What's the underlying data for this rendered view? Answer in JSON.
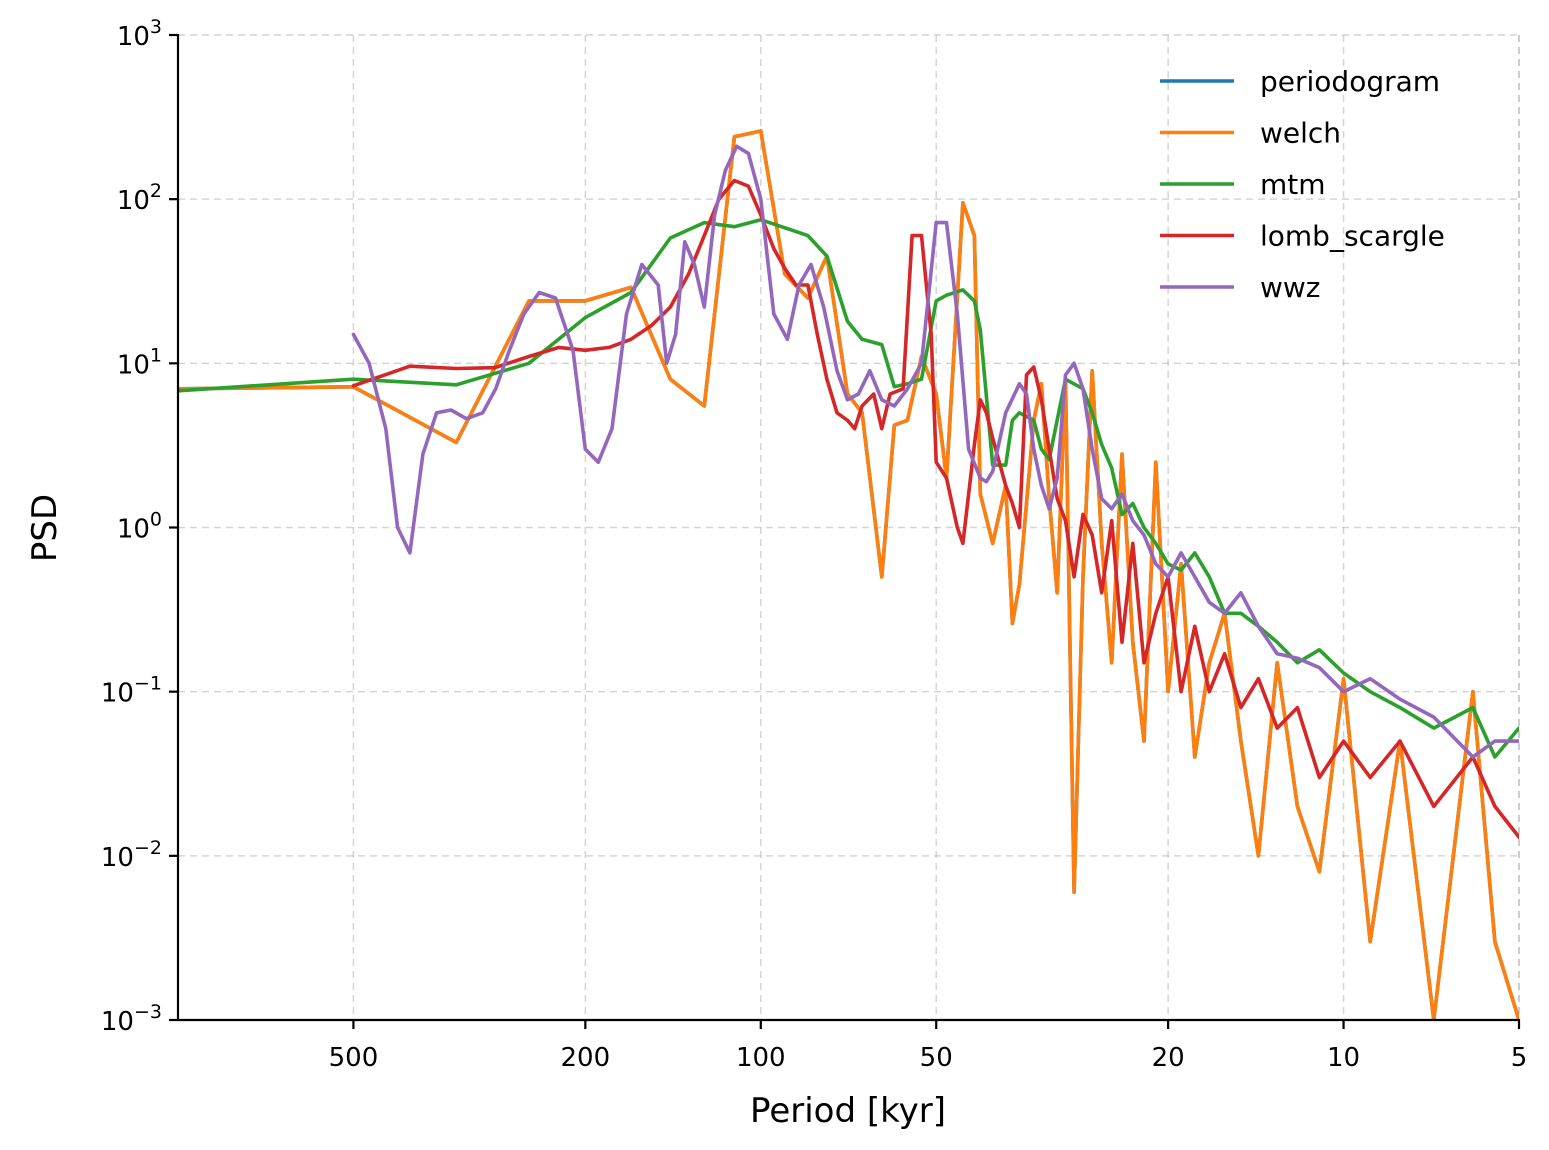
{
  "chart_data": {
    "type": "line",
    "title": "",
    "xlabel": "Period [kyr]",
    "ylabel": "PSD",
    "x_scale": "log",
    "y_scale": "log",
    "x_inverted": true,
    "xlim": [
      1000,
      5
    ],
    "ylim": [
      0.001,
      1000
    ],
    "x_ticks": [
      {
        "value": 500,
        "label": "500"
      },
      {
        "value": 200,
        "label": "200"
      },
      {
        "value": 100,
        "label": "100"
      },
      {
        "value": 50,
        "label": "50"
      },
      {
        "value": 20,
        "label": "20"
      },
      {
        "value": 10,
        "label": "10"
      },
      {
        "value": 5,
        "label": "5"
      }
    ],
    "y_ticks": [
      {
        "value": 0.001,
        "base": "10",
        "exp": "−3"
      },
      {
        "value": 0.01,
        "base": "10",
        "exp": "−2"
      },
      {
        "value": 0.1,
        "base": "10",
        "exp": "−1"
      },
      {
        "value": 1,
        "base": "10",
        "exp": "0"
      },
      {
        "value": 10,
        "base": "10",
        "exp": "1"
      },
      {
        "value": 100,
        "base": "10",
        "exp": "2"
      },
      {
        "value": 1000,
        "base": "10",
        "exp": "3"
      }
    ],
    "grid": true,
    "legend_position": "top-right",
    "series": [
      {
        "name": "periodogram",
        "color": "#1f77b4",
        "x": [
          1000,
          500,
          333,
          250,
          200,
          167,
          143,
          125,
          111,
          100,
          91,
          83,
          77,
          71,
          67,
          62,
          59,
          56,
          53,
          50,
          48,
          45,
          43,
          42,
          40,
          38,
          37,
          36,
          34,
          33,
          32,
          31,
          30,
          29,
          28,
          27,
          26,
          25,
          24,
          23,
          22,
          21,
          20,
          19,
          18,
          17,
          16,
          15,
          14,
          13,
          12,
          11,
          10,
          9,
          8,
          7,
          6,
          5.5,
          5
        ],
        "y": [
          7,
          7.2,
          3.3,
          24,
          24,
          29,
          8,
          5.5,
          240,
          260,
          35,
          25,
          45,
          6.5,
          5,
          0.5,
          4.2,
          4.5,
          11,
          6.5,
          2,
          95,
          60,
          1.6,
          0.8,
          1.8,
          0.26,
          0.45,
          4.5,
          7.5,
          1.5,
          0.4,
          8,
          0.006,
          0.5,
          9,
          0.8,
          0.15,
          2.8,
          0.2,
          0.05,
          2.5,
          0.1,
          0.6,
          0.04,
          0.15,
          0.3,
          0.05,
          0.01,
          0.15,
          0.02,
          0.008,
          0.12,
          0.003,
          0.05,
          0.001,
          0.1,
          0.003,
          0.001
        ]
      },
      {
        "name": "welch",
        "color": "#ff7f0e",
        "x": [
          1000,
          500,
          333,
          250,
          200,
          167,
          143,
          125,
          111,
          100,
          91,
          83,
          77,
          71,
          67,
          62,
          59,
          56,
          53,
          50,
          48,
          45,
          43,
          42,
          40,
          38,
          37,
          36,
          34,
          33,
          32,
          31,
          30,
          29,
          28,
          27,
          26,
          25,
          24,
          23,
          22,
          21,
          20,
          19,
          18,
          17,
          16,
          15,
          14,
          13,
          12,
          11,
          10,
          9,
          8,
          7,
          6,
          5.5,
          5
        ],
        "y": [
          7,
          7.2,
          3.3,
          24,
          24,
          29,
          8,
          5.5,
          240,
          260,
          35,
          25,
          45,
          6.5,
          5,
          0.5,
          4.2,
          4.5,
          11,
          6.5,
          2,
          95,
          60,
          1.6,
          0.8,
          1.8,
          0.26,
          0.45,
          4.5,
          7.5,
          1.5,
          0.4,
          8,
          0.006,
          0.5,
          9,
          0.8,
          0.15,
          2.8,
          0.2,
          0.05,
          2.5,
          0.1,
          0.6,
          0.04,
          0.15,
          0.3,
          0.05,
          0.01,
          0.15,
          0.02,
          0.008,
          0.12,
          0.003,
          0.05,
          0.001,
          0.1,
          0.003,
          0.001
        ]
      },
      {
        "name": "mtm",
        "color": "#2ca02c",
        "x": [
          1000,
          500,
          333,
          250,
          200,
          167,
          143,
          125,
          111,
          100,
          83,
          77,
          71,
          67,
          62,
          59,
          56,
          53,
          50,
          48,
          45,
          43,
          42,
          40,
          38,
          37,
          36,
          34,
          33,
          32,
          30,
          28,
          27,
          26,
          25,
          24,
          23,
          22,
          21,
          20,
          19,
          18,
          17,
          16,
          15,
          14,
          13,
          12,
          11,
          10,
          9,
          8,
          7,
          6,
          5.5,
          5
        ],
        "y": [
          6.8,
          8,
          7.4,
          10,
          19,
          27,
          58,
          72,
          68,
          75,
          60,
          45,
          18,
          14,
          13,
          7.2,
          7.5,
          8,
          24,
          26,
          28,
          24,
          16,
          2.4,
          2.4,
          4.5,
          5,
          4.5,
          3,
          2.6,
          8,
          7,
          5,
          3.2,
          2.3,
          1.2,
          1.4,
          1,
          0.8,
          0.6,
          0.55,
          0.7,
          0.5,
          0.3,
          0.3,
          0.25,
          0.2,
          0.15,
          0.18,
          0.13,
          0.1,
          0.08,
          0.06,
          0.08,
          0.04,
          0.06
        ]
      },
      {
        "name": "lomb_scargle",
        "color": "#d62728",
        "x": [
          500,
          400,
          333,
          286,
          250,
          222,
          200,
          182,
          167,
          154,
          143,
          133,
          125,
          118,
          111,
          105,
          100,
          95,
          91,
          87,
          83,
          80,
          77,
          74,
          71,
          69,
          67,
          64,
          62,
          60,
          57,
          55,
          53,
          51,
          50,
          48,
          46,
          45,
          43,
          42,
          41,
          40,
          38,
          37,
          36,
          35,
          34,
          33,
          32,
          31,
          30,
          29,
          28,
          27,
          26,
          25,
          24,
          23,
          22,
          21,
          20,
          19,
          18,
          17,
          16,
          15,
          14,
          13,
          12,
          11,
          10,
          9,
          8,
          7,
          6,
          5.5,
          5
        ],
        "y": [
          7.3,
          9.6,
          9.3,
          9.4,
          11,
          12.5,
          12,
          12.5,
          14,
          17,
          22,
          35,
          60,
          100,
          130,
          120,
          80,
          50,
          38,
          30,
          30,
          15,
          8,
          5,
          4.5,
          4,
          5.5,
          6.5,
          4,
          6.5,
          7,
          60,
          60,
          15,
          2.5,
          2,
          1,
          0.8,
          3.2,
          6,
          5,
          3.5,
          1.8,
          1.4,
          1,
          8.5,
          9.5,
          6,
          3,
          1.5,
          1.1,
          0.5,
          1.2,
          0.9,
          0.4,
          1.1,
          0.2,
          0.8,
          0.15,
          0.3,
          0.5,
          0.1,
          0.25,
          0.1,
          0.17,
          0.08,
          0.12,
          0.06,
          0.08,
          0.03,
          0.05,
          0.03,
          0.05,
          0.02,
          0.04,
          0.02,
          0.013
        ]
      },
      {
        "name": "wwz",
        "color": "#9467bd",
        "x": [
          500,
          470,
          440,
          420,
          400,
          380,
          360,
          340,
          320,
          300,
          285,
          270,
          255,
          240,
          225,
          210,
          200,
          190,
          180,
          170,
          160,
          150,
          145,
          140,
          135,
          130,
          125,
          120,
          115,
          110,
          105,
          100,
          95,
          90,
          86,
          82,
          78,
          74,
          71,
          68,
          65,
          62,
          59,
          56,
          53,
          50,
          48,
          46,
          44,
          42,
          41,
          40,
          38,
          36,
          35,
          34,
          33,
          32,
          31,
          30,
          29,
          28,
          27,
          26,
          25,
          24,
          23,
          22,
          21,
          20,
          19,
          18,
          17,
          16,
          15,
          14,
          13,
          12,
          11,
          10,
          9,
          8,
          7,
          6,
          5.5,
          5
        ],
        "y": [
          15,
          10,
          4,
          1,
          0.7,
          2.8,
          5,
          5.2,
          4.6,
          5,
          7,
          12,
          20,
          27,
          25,
          12,
          3,
          2.5,
          4,
          20,
          40,
          30,
          10,
          15,
          55,
          40,
          22,
          80,
          150,
          210,
          190,
          100,
          20,
          14,
          30,
          40,
          22,
          9,
          6,
          6.5,
          9,
          6,
          5.5,
          7,
          10,
          72,
          72,
          20,
          3,
          2,
          1.9,
          2.2,
          5,
          7.5,
          6.5,
          3,
          1.8,
          1.3,
          2,
          8.5,
          10,
          7,
          3,
          1.5,
          1.3,
          1.6,
          1.1,
          0.9,
          0.6,
          0.5,
          0.7,
          0.5,
          0.35,
          0.3,
          0.4,
          0.25,
          0.17,
          0.16,
          0.14,
          0.1,
          0.12,
          0.09,
          0.07,
          0.04,
          0.05,
          0.05
        ]
      }
    ]
  }
}
